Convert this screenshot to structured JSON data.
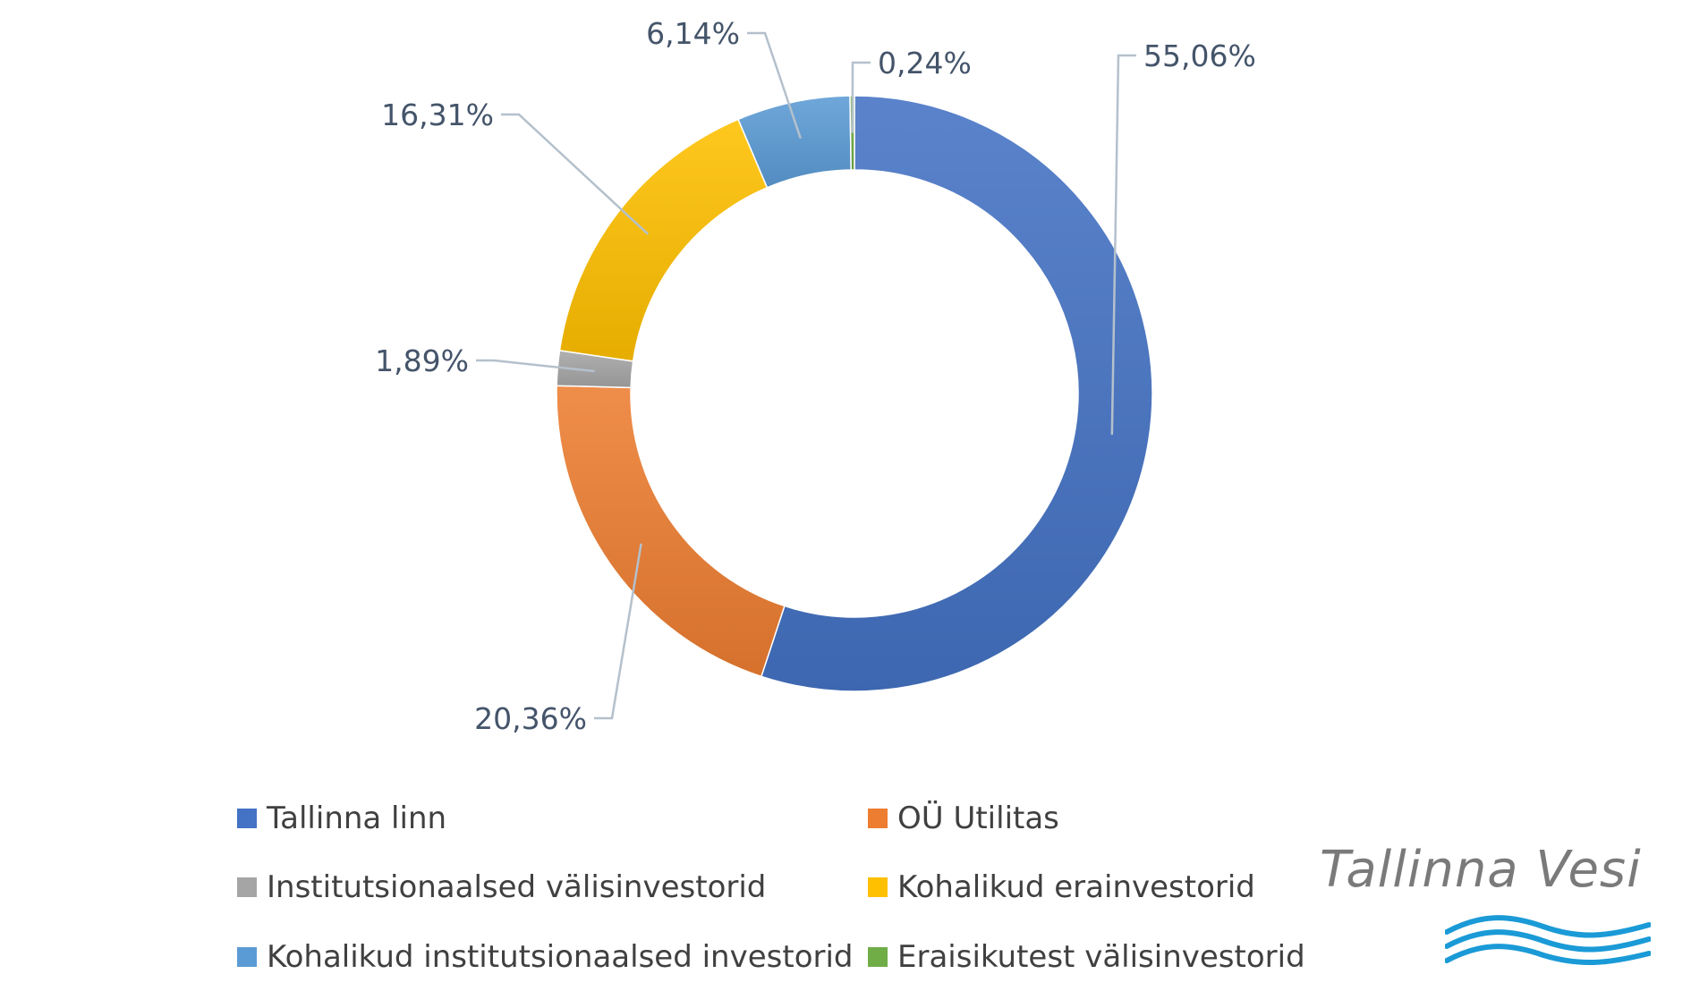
{
  "chart_data": {
    "type": "pie",
    "donut": true,
    "slices": [
      {
        "category": "Tallinna linn",
        "value": 55.06,
        "label": "55,06%",
        "color": "#4472c4"
      },
      {
        "category": "OÜ Utilitas",
        "value": 20.36,
        "label": "20,36%",
        "color": "#ed7d31"
      },
      {
        "category": "Institutsionaalsed välisinvestorid",
        "value": 1.89,
        "label": "1,89%",
        "color": "#a5a5a5"
      },
      {
        "category": "Kohalikud erainvestorid",
        "value": 16.31,
        "label": "16,31%",
        "color": "#ffc000"
      },
      {
        "category": "Kohalikud institutsionaalsed investorid",
        "value": 6.14,
        "label": "6,14%",
        "color": "#5b9bd5"
      },
      {
        "category": "Eraisikutest välisinvestorid",
        "value": 0.24,
        "label": "0,24%",
        "color": "#70ad47"
      }
    ],
    "legend_position": "bottom"
  },
  "logo": {
    "text": "Tallinna Vesi",
    "wave_color": "#1a9ad6"
  }
}
